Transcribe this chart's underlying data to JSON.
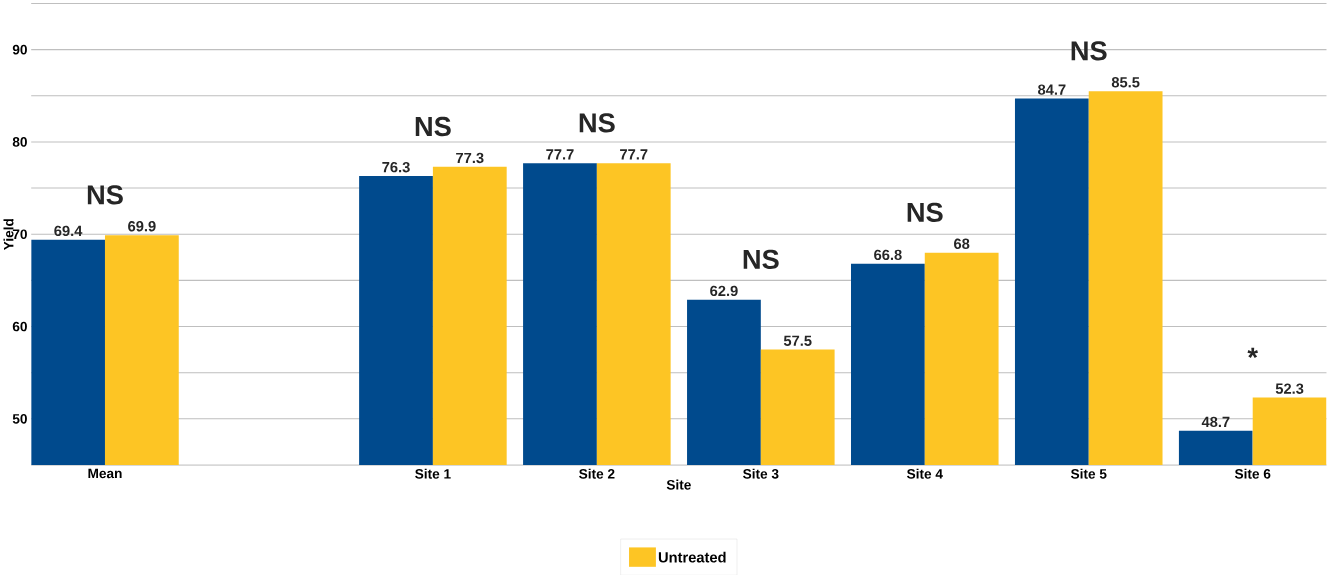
{
  "chart_data": {
    "type": "bar",
    "xlabel": "Site",
    "ylabel": "Yield",
    "categories": [
      "Mean",
      null,
      "Site 1",
      "Site 2",
      "Site 3",
      "Site 4",
      "Site 5",
      "Site 6"
    ],
    "series": [
      {
        "color": "#004a8d",
        "values": [
          69.4,
          null,
          76.3,
          77.7,
          62.9,
          66.8,
          84.7,
          48.7
        ]
      },
      {
        "name": "Untreated",
        "color": "#fdc524",
        "values": [
          69.9,
          null,
          77.3,
          77.7,
          57.5,
          68,
          85.5,
          52.3
        ]
      }
    ],
    "ylim": [
      45,
      95
    ],
    "yticks": [
      50,
      {
        "value": 55,
        "label": null
      },
      60,
      {
        "value": 65,
        "label": null
      },
      70,
      {
        "value": 75,
        "label": null
      },
      80,
      {
        "value": 85,
        "label": null
      },
      90,
      {
        "value": 95,
        "label": null
      }
    ],
    "grid": "y",
    "legend": "bottom",
    "data_labels": true,
    "annotations": [
      "NS",
      "NS",
      "NS",
      "NS",
      "NS",
      "NS",
      "*"
    ]
  }
}
